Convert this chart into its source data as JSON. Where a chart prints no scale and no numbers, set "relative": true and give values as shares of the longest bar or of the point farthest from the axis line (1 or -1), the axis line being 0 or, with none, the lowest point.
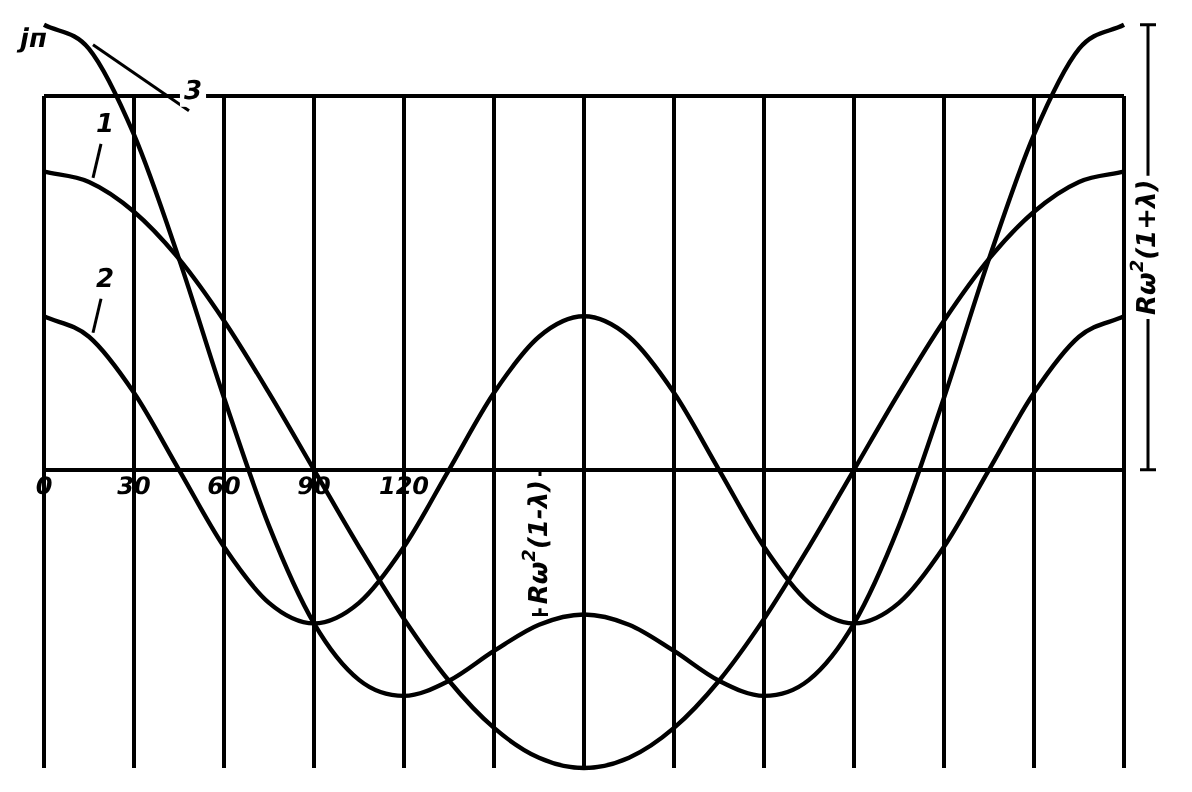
{
  "chart_data": {
    "type": "line",
    "relative": true,
    "ylabel": "jп",
    "x": [
      0,
      15,
      30,
      45,
      60,
      75,
      90,
      105,
      120,
      135,
      150,
      165,
      180,
      195,
      210,
      225,
      240,
      255,
      270,
      285,
      300,
      315,
      330,
      345,
      360
    ],
    "series": [
      {
        "name": "1",
        "color": "#000000",
        "values": [
          0.67,
          0.647,
          0.58,
          0.474,
          0.335,
          0.173,
          0,
          -0.173,
          -0.335,
          -0.474,
          -0.58,
          -0.647,
          -0.67,
          -0.647,
          -0.58,
          -0.474,
          -0.335,
          -0.173,
          0,
          0.173,
          0.335,
          0.474,
          0.58,
          0.647,
          0.67
        ]
      },
      {
        "name": "2",
        "color": "#000000",
        "values": [
          0.345,
          0.299,
          0.173,
          0,
          -0.173,
          -0.299,
          -0.345,
          -0.299,
          -0.173,
          0,
          0.173,
          0.299,
          0.345,
          0.299,
          0.173,
          0,
          -0.173,
          -0.299,
          -0.345,
          -0.299,
          -0.173,
          0,
          0.173,
          0.299,
          0.345
        ]
      },
      {
        "name": "3",
        "color": "#000000",
        "values": [
          1,
          0.946,
          0.753,
          0.474,
          0.162,
          -0.126,
          -0.345,
          -0.472,
          -0.508,
          -0.474,
          -0.407,
          -0.348,
          -0.325,
          -0.348,
          -0.407,
          -0.474,
          -0.508,
          -0.472,
          -0.345,
          -0.126,
          0.162,
          0.474,
          0.753,
          0.946,
          1
        ]
      }
    ],
    "xlim": [
      0,
      360
    ],
    "xticks": [
      0,
      30,
      60,
      90,
      120,
      {
        "value": 150,
        "label": null
      },
      {
        "value": 180,
        "label": null
      },
      {
        "value": 210,
        "label": null
      },
      {
        "value": 240,
        "label": null
      },
      {
        "value": 270,
        "label": null
      },
      {
        "value": 300,
        "label": null
      },
      {
        "value": 330,
        "label": null
      },
      {
        "value": 360,
        "label": null
      }
    ],
    "ref_lines": [
      {
        "axis": "y",
        "value": 0.84
      }
    ],
    "annotations": [
      "Rω$^{2}$(1+λ)",
      "Rω$^{2}$(1-λ)"
    ],
    "grid": "x",
    "legend": false,
    "marker": "none",
    "line_style": "solid"
  }
}
